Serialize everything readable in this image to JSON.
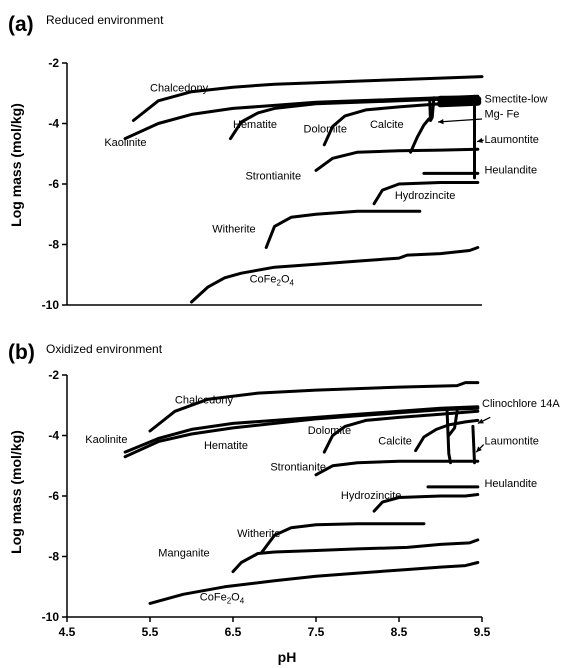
{
  "chart_data": [
    {
      "type": "line",
      "panel_letter": "(a)",
      "title": "Reduced environment",
      "ylabel": "Log mass (mol/kg)",
      "xlabel": "",
      "xlim": [
        4.5,
        9.5
      ],
      "ylim": [
        -10,
        -2
      ],
      "yticks": [
        "-2",
        "-4",
        "-6",
        "-8",
        "-10"
      ],
      "xticks": [],
      "series": [
        {
          "points": [
            [
              5.3,
              -3.9
            ],
            [
              5.6,
              -3.25
            ],
            [
              6.0,
              -2.95
            ],
            [
              6.5,
              -2.8
            ],
            [
              7.0,
              -2.7
            ],
            [
              7.5,
              -2.65
            ],
            [
              8.0,
              -2.6
            ],
            [
              8.5,
              -2.55
            ],
            [
              9.0,
              -2.5
            ],
            [
              9.5,
              -2.45
            ]
          ]
        },
        {
          "points": [
            [
              5.2,
              -4.5
            ],
            [
              5.6,
              -4.0
            ],
            [
              6.0,
              -3.7
            ],
            [
              6.5,
              -3.5
            ],
            [
              7.0,
              -3.4
            ],
            [
              7.5,
              -3.3
            ],
            [
              8.0,
              -3.25
            ],
            [
              8.5,
              -3.2
            ],
            [
              9.0,
              -3.15
            ],
            [
              9.45,
              -3.1
            ]
          ]
        },
        {
          "points": [
            [
              6.47,
              -4.5
            ],
            [
              6.6,
              -3.95
            ],
            [
              6.8,
              -3.65
            ],
            [
              7.0,
              -3.5
            ],
            [
              7.5,
              -3.35
            ],
            [
              8.0,
              -3.3
            ],
            [
              8.5,
              -3.25
            ],
            [
              9.0,
              -3.2
            ],
            [
              9.45,
              -3.2
            ]
          ],
          "thick_from": 8.85
        },
        {
          "points": [
            [
              7.6,
              -4.7
            ],
            [
              7.7,
              -4.1
            ],
            [
              7.85,
              -3.75
            ],
            [
              8.1,
              -3.55
            ],
            [
              8.5,
              -3.45
            ],
            [
              9.0,
              -3.35
            ],
            [
              9.45,
              -3.3
            ]
          ],
          "thick_from": 8.85
        },
        {
          "points": [
            [
              8.64,
              -4.95
            ],
            [
              8.72,
              -4.45
            ],
            [
              8.8,
              -4.05
            ],
            [
              8.86,
              -3.85
            ]
          ]
        },
        {
          "points": [
            [
              8.87,
              -3.2
            ],
            [
              8.88,
              -3.9
            ],
            [
              8.9,
              -3.8
            ],
            [
              8.92,
              -3.15
            ]
          ]
        },
        {
          "points": [
            [
              7.5,
              -5.55
            ],
            [
              7.7,
              -5.15
            ],
            [
              8.0,
              -4.95
            ],
            [
              8.5,
              -4.9
            ],
            [
              9.0,
              -4.88
            ],
            [
              9.45,
              -4.85
            ]
          ]
        },
        {
          "points": [
            [
              9.41,
              -3.1
            ],
            [
              9.41,
              -5.8
            ]
          ]
        },
        {
          "points": [
            [
              8.8,
              -5.65
            ],
            [
              9.45,
              -5.65
            ]
          ]
        },
        {
          "points": [
            [
              8.2,
              -6.65
            ],
            [
              8.3,
              -6.2
            ],
            [
              8.5,
              -6.0
            ],
            [
              9.0,
              -5.95
            ],
            [
              9.45,
              -5.95
            ]
          ]
        },
        {
          "points": [
            [
              6.9,
              -8.1
            ],
            [
              7.0,
              -7.4
            ],
            [
              7.2,
              -7.1
            ],
            [
              7.5,
              -7.0
            ],
            [
              8.0,
              -6.9
            ],
            [
              8.5,
              -6.9
            ],
            [
              8.75,
              -6.9
            ]
          ]
        },
        {
          "points": [
            [
              6.0,
              -9.9
            ],
            [
              6.2,
              -9.4
            ],
            [
              6.4,
              -9.1
            ],
            [
              6.6,
              -8.95
            ],
            [
              7.0,
              -8.75
            ],
            [
              7.5,
              -8.65
            ],
            [
              8.0,
              -8.55
            ],
            [
              8.5,
              -8.45
            ],
            [
              8.6,
              -8.35
            ],
            [
              9.0,
              -8.3
            ],
            [
              9.35,
              -8.2
            ],
            [
              9.45,
              -8.1
            ]
          ]
        }
      ],
      "labels": [
        {
          "text": "Chalcedony",
          "x": 5.5,
          "y": -2.95,
          "anchor": "start"
        },
        {
          "text": "Kaolinite",
          "x": 4.95,
          "y": -4.75,
          "anchor": "start"
        },
        {
          "text": "Hematite",
          "x": 6.5,
          "y": -4.15,
          "anchor": "start"
        },
        {
          "text": "Dolomite",
          "x": 7.35,
          "y": -4.3,
          "anchor": "start"
        },
        {
          "text": "Calcite",
          "x": 8.15,
          "y": -4.15,
          "anchor": "start"
        },
        {
          "text": "Smectite-low",
          "x": 9.53,
          "y": -3.3,
          "anchor": "start"
        },
        {
          "text": "Mg- Fe",
          "x": 9.53,
          "y": -3.8,
          "anchor": "start"
        },
        {
          "text": "Laumontite",
          "x": 9.53,
          "y": -4.65,
          "anchor": "start"
        },
        {
          "text": "Strontianite",
          "x": 6.65,
          "y": -5.85,
          "anchor": "start"
        },
        {
          "text": "Heulandite",
          "x": 9.53,
          "y": -5.65,
          "anchor": "start"
        },
        {
          "text": "Hydrozincite",
          "x": 8.45,
          "y": -6.5,
          "anchor": "start"
        },
        {
          "text": "Witherite",
          "x": 6.25,
          "y": -7.6,
          "anchor": "start"
        },
        {
          "text": "CoFe",
          "x": 6.7,
          "y": -9.25,
          "anchor": "start",
          "sub": "2",
          "tail": "O",
          "sub2": "4"
        }
      ],
      "arrows": [
        {
          "from": [
            9.5,
            -3.85
          ],
          "to": [
            8.97,
            -3.95
          ]
        },
        {
          "from": [
            9.52,
            -4.55
          ],
          "to": [
            9.44,
            -4.6
          ]
        }
      ]
    },
    {
      "type": "line",
      "panel_letter": "(b)",
      "title": "Oxidized environment",
      "ylabel": "Log mass (mol/kg)",
      "xlabel": "pH",
      "xlim": [
        4.5,
        9.5
      ],
      "ylim": [
        -10,
        -2
      ],
      "yticks": [
        "-2",
        "-4",
        "-6",
        "-8",
        "-10"
      ],
      "xticks": [
        "4.5",
        "5.5",
        "6.5",
        "7.5",
        "8.5",
        "9.5"
      ],
      "series": [
        {
          "points": [
            [
              5.5,
              -3.85
            ],
            [
              5.8,
              -3.2
            ],
            [
              6.2,
              -2.8
            ],
            [
              6.8,
              -2.6
            ],
            [
              7.5,
              -2.5
            ],
            [
              8.5,
              -2.4
            ],
            [
              9.2,
              -2.35
            ],
            [
              9.3,
              -2.25
            ],
            [
              9.45,
              -2.25
            ]
          ]
        },
        {
          "points": [
            [
              5.2,
              -4.55
            ],
            [
              5.6,
              -4.1
            ],
            [
              6.0,
              -3.8
            ],
            [
              6.5,
              -3.6
            ],
            [
              7.0,
              -3.5
            ],
            [
              7.5,
              -3.4
            ],
            [
              8.0,
              -3.3
            ],
            [
              8.5,
              -3.2
            ],
            [
              9.0,
              -3.1
            ],
            [
              9.45,
              -3.05
            ]
          ]
        },
        {
          "points": [
            [
              5.2,
              -4.7
            ],
            [
              5.6,
              -4.2
            ],
            [
              6.0,
              -3.95
            ],
            [
              6.5,
              -3.75
            ],
            [
              7.0,
              -3.6
            ],
            [
              7.5,
              -3.45
            ],
            [
              8.0,
              -3.35
            ],
            [
              8.5,
              -3.25
            ],
            [
              9.0,
              -3.15
            ],
            [
              9.45,
              -3.1
            ]
          ],
          "thick_from": 9.15
        },
        {
          "points": [
            [
              7.6,
              -4.55
            ],
            [
              7.7,
              -4.0
            ],
            [
              7.85,
              -3.7
            ],
            [
              8.1,
              -3.5
            ],
            [
              8.5,
              -3.4
            ],
            [
              9.0,
              -3.3
            ],
            [
              9.45,
              -3.2
            ]
          ],
          "thick_from": 9.15
        },
        {
          "points": [
            [
              8.7,
              -4.5
            ],
            [
              8.8,
              -4.05
            ],
            [
              8.95,
              -3.8
            ],
            [
              9.1,
              -3.65
            ],
            [
              9.3,
              -3.55
            ],
            [
              9.45,
              -3.5
            ]
          ]
        },
        {
          "points": [
            [
              9.08,
              -3.2
            ],
            [
              9.1,
              -4.6
            ],
            [
              9.12,
              -4.9
            ]
          ]
        },
        {
          "points": [
            [
              9.1,
              -4.0
            ],
            [
              9.17,
              -3.75
            ],
            [
              9.2,
              -3.2
            ]
          ]
        },
        {
          "points": [
            [
              9.39,
              -3.7
            ],
            [
              9.41,
              -4.9
            ]
          ]
        },
        {
          "points": [
            [
              7.5,
              -5.3
            ],
            [
              7.7,
              -5.0
            ],
            [
              8.0,
              -4.9
            ],
            [
              8.5,
              -4.85
            ],
            [
              9.0,
              -4.85
            ],
            [
              9.45,
              -4.85
            ]
          ]
        },
        {
          "points": [
            [
              8.85,
              -5.7
            ],
            [
              9.45,
              -5.7
            ]
          ]
        },
        {
          "points": [
            [
              8.2,
              -6.5
            ],
            [
              8.3,
              -6.2
            ],
            [
              8.5,
              -6.05
            ],
            [
              9.0,
              -6.0
            ],
            [
              9.3,
              -6.0
            ],
            [
              9.45,
              -5.95
            ]
          ]
        },
        {
          "points": [
            [
              6.85,
              -7.85
            ],
            [
              7.0,
              -7.3
            ],
            [
              7.2,
              -7.05
            ],
            [
              7.5,
              -6.95
            ],
            [
              8.0,
              -6.92
            ],
            [
              8.5,
              -6.92
            ],
            [
              8.8,
              -6.92
            ]
          ]
        },
        {
          "points": [
            [
              6.5,
              -8.5
            ],
            [
              6.6,
              -8.2
            ],
            [
              6.8,
              -7.9
            ],
            [
              7.0,
              -7.85
            ],
            [
              7.5,
              -7.8
            ],
            [
              8.0,
              -7.75
            ],
            [
              8.6,
              -7.7
            ],
            [
              9.0,
              -7.6
            ],
            [
              9.35,
              -7.55
            ],
            [
              9.45,
              -7.45
            ]
          ]
        },
        {
          "points": [
            [
              5.5,
              -9.55
            ],
            [
              5.9,
              -9.25
            ],
            [
              6.4,
              -9.0
            ],
            [
              7.0,
              -8.8
            ],
            [
              7.5,
              -8.65
            ],
            [
              8.0,
              -8.55
            ],
            [
              8.5,
              -8.45
            ],
            [
              9.0,
              -8.35
            ],
            [
              9.3,
              -8.3
            ],
            [
              9.45,
              -8.2
            ]
          ]
        }
      ],
      "labels": [
        {
          "text": "Chalcedony",
          "x": 5.8,
          "y": -2.95,
          "anchor": "start"
        },
        {
          "text": "Kaolinite",
          "x": 4.72,
          "y": -4.25,
          "anchor": "start"
        },
        {
          "text": "Hematite",
          "x": 6.15,
          "y": -4.45,
          "anchor": "start"
        },
        {
          "text": "Dolomite",
          "x": 7.4,
          "y": -3.95,
          "anchor": "start"
        },
        {
          "text": "Calcite",
          "x": 8.25,
          "y": -4.3,
          "anchor": "start"
        },
        {
          "text": "Clinochlore 14A",
          "x": 9.5,
          "y": -3.05,
          "anchor": "start"
        },
        {
          "text": "Laumontite",
          "x": 9.53,
          "y": -4.3,
          "anchor": "start"
        },
        {
          "text": "Strontianite",
          "x": 6.95,
          "y": -5.15,
          "anchor": "start"
        },
        {
          "text": "Heulandite",
          "x": 9.53,
          "y": -5.7,
          "anchor": "start"
        },
        {
          "text": "Hydrozincite",
          "x": 7.8,
          "y": -6.1,
          "anchor": "start"
        },
        {
          "text": "Witherite",
          "x": 6.55,
          "y": -7.35,
          "anchor": "start"
        },
        {
          "text": "Manganite",
          "x": 5.6,
          "y": -8.0,
          "anchor": "start"
        },
        {
          "text": "CoFe",
          "x": 6.1,
          "y": -9.45,
          "anchor": "start",
          "sub": "2",
          "tail": "O",
          "sub2": "4"
        }
      ],
      "arrows": [
        {
          "from": [
            9.6,
            -3.4
          ],
          "to": [
            9.45,
            -3.6
          ]
        },
        {
          "from": [
            9.52,
            -4.3
          ],
          "to": [
            9.43,
            -4.55
          ]
        }
      ]
    }
  ]
}
